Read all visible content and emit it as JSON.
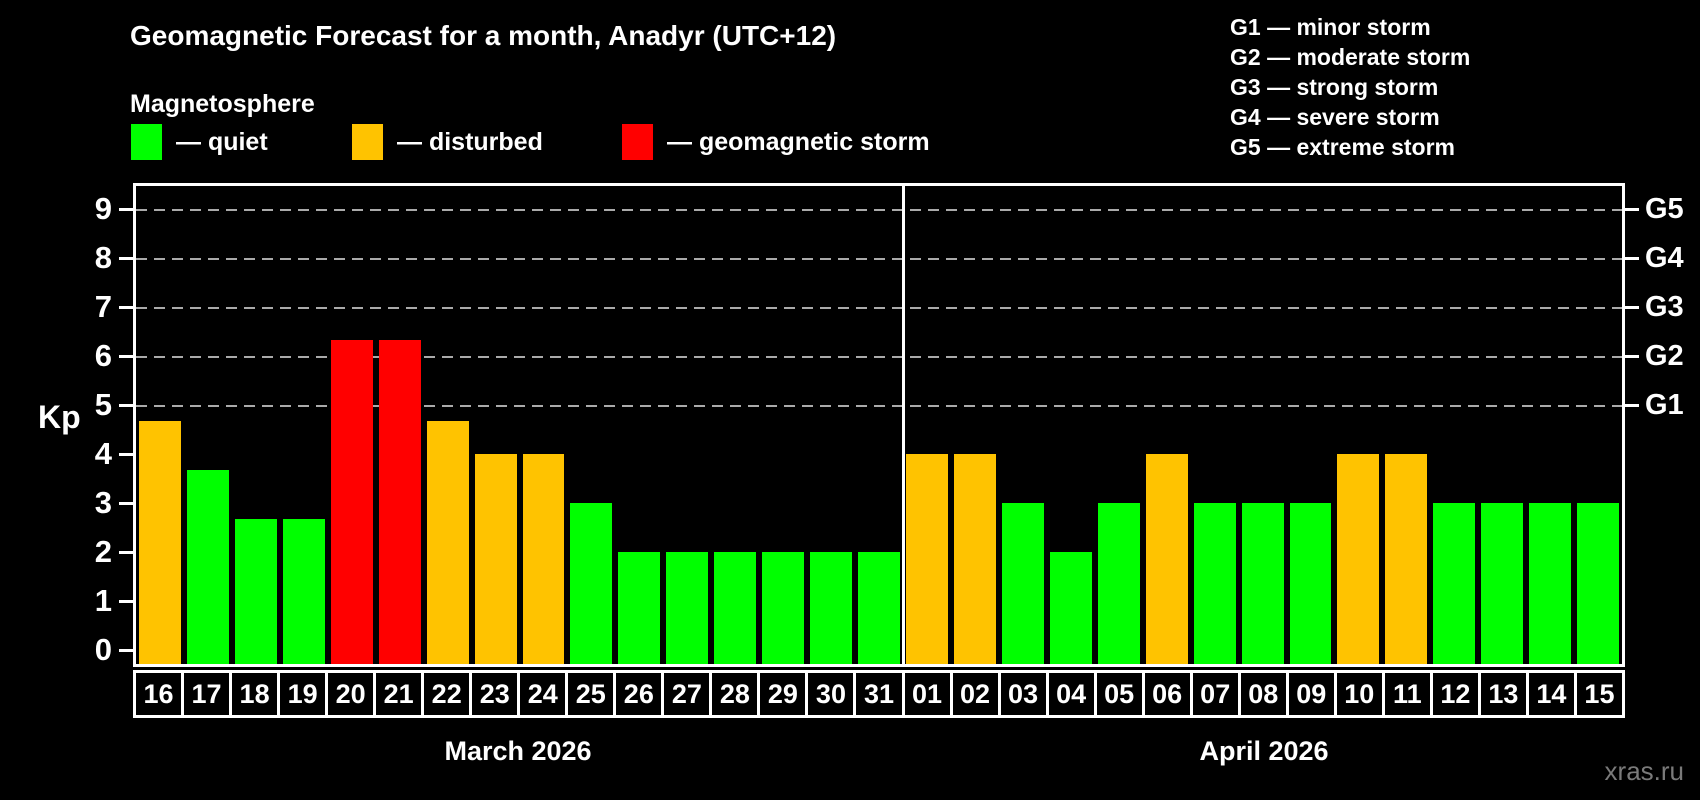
{
  "title": "Geomagnetic Forecast for a month, Anadyr (UTC+12)",
  "subtitle": "Magnetosphere",
  "legend": [
    {
      "key": "quiet",
      "label": "— quiet",
      "color": "#00ff00"
    },
    {
      "key": "disturbed",
      "label": "— disturbed",
      "color": "#ffc300"
    },
    {
      "key": "storm",
      "label": "— geomagnetic storm",
      "color": "#ff0000"
    }
  ],
  "g_legend": [
    "G1 — minor storm",
    "G2 — moderate storm",
    "G3 — strong storm",
    "G4 — severe storm",
    "G5 — extreme storm"
  ],
  "watermark": "xras.ru",
  "colors": {
    "background": "#000000",
    "axis": "#ffffff",
    "grid": "#aaaaaa",
    "watermark": "#7a7a7a"
  },
  "chart_data": {
    "type": "bar",
    "ylabel": "Kp",
    "ylim": [
      0,
      9
    ],
    "yticks": [
      0,
      1,
      2,
      3,
      4,
      5,
      6,
      7,
      8,
      9
    ],
    "grid_levels": [
      5,
      6,
      7,
      8,
      9
    ],
    "grid_style": "dashed",
    "legend_position": "top",
    "right_axis": [
      {
        "label": "G5",
        "kp": 9
      },
      {
        "label": "G4",
        "kp": 8
      },
      {
        "label": "G3",
        "kp": 7
      },
      {
        "label": "G2",
        "kp": 6
      },
      {
        "label": "G1",
        "kp": 5
      }
    ],
    "months": [
      {
        "label": "March 2026",
        "days": [
          {
            "day": "16",
            "kp": 4.67,
            "level": "disturbed"
          },
          {
            "day": "17",
            "kp": 3.67,
            "level": "quiet"
          },
          {
            "day": "18",
            "kp": 2.67,
            "level": "quiet"
          },
          {
            "day": "19",
            "kp": 2.67,
            "level": "quiet"
          },
          {
            "day": "20",
            "kp": 6.33,
            "level": "storm"
          },
          {
            "day": "21",
            "kp": 6.33,
            "level": "storm"
          },
          {
            "day": "22",
            "kp": 4.67,
            "level": "disturbed"
          },
          {
            "day": "23",
            "kp": 4.0,
            "level": "disturbed"
          },
          {
            "day": "24",
            "kp": 4.0,
            "level": "disturbed"
          },
          {
            "day": "25",
            "kp": 3.0,
            "level": "quiet"
          },
          {
            "day": "26",
            "kp": 2.0,
            "level": "quiet"
          },
          {
            "day": "27",
            "kp": 2.0,
            "level": "quiet"
          },
          {
            "day": "28",
            "kp": 2.0,
            "level": "quiet"
          },
          {
            "day": "29",
            "kp": 2.0,
            "level": "quiet"
          },
          {
            "day": "30",
            "kp": 2.0,
            "level": "quiet"
          },
          {
            "day": "31",
            "kp": 2.0,
            "level": "quiet"
          }
        ]
      },
      {
        "label": "April 2026",
        "days": [
          {
            "day": "01",
            "kp": 4.0,
            "level": "disturbed"
          },
          {
            "day": "02",
            "kp": 4.0,
            "level": "disturbed"
          },
          {
            "day": "03",
            "kp": 3.0,
            "level": "quiet"
          },
          {
            "day": "04",
            "kp": 2.0,
            "level": "quiet"
          },
          {
            "day": "05",
            "kp": 3.0,
            "level": "quiet"
          },
          {
            "day": "06",
            "kp": 4.0,
            "level": "disturbed"
          },
          {
            "day": "07",
            "kp": 3.0,
            "level": "quiet"
          },
          {
            "day": "08",
            "kp": 3.0,
            "level": "quiet"
          },
          {
            "day": "09",
            "kp": 3.0,
            "level": "quiet"
          },
          {
            "day": "10",
            "kp": 4.0,
            "level": "disturbed"
          },
          {
            "day": "11",
            "kp": 4.0,
            "level": "disturbed"
          },
          {
            "day": "12",
            "kp": 3.0,
            "level": "quiet"
          },
          {
            "day": "13",
            "kp": 3.0,
            "level": "quiet"
          },
          {
            "day": "14",
            "kp": 3.0,
            "level": "quiet"
          },
          {
            "day": "15",
            "kp": 3.0,
            "level": "quiet"
          }
        ]
      }
    ]
  }
}
